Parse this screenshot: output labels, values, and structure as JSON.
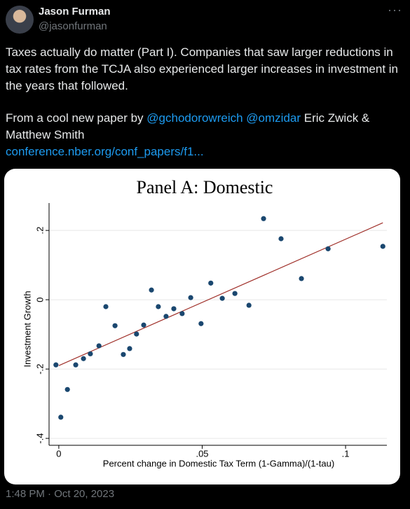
{
  "tweet": {
    "author": "Jason Furman",
    "handle": "@jasonfurman",
    "paragraph_1": "Taxes actually do matter (Part I). Companies that saw larger reductions in tax rates from the TCJA also experienced larger increases in investment in the years that followed.",
    "paragraph_2": [
      "From a cool new paper by",
      "@gchodorowreich",
      "@omzidar",
      "Eric Zwick & Matthew Smith"
    ],
    "link": "conference.nber.org/conf_papers/f1...",
    "timestamp": "1:48 PM · Oct 20, 2023"
  },
  "chart_data": {
    "type": "scatter",
    "title": "Panel A: Domestic",
    "x_label": "Percent change in Domestic Tax Term (1-Gamma)/(1-tau)",
    "y_label": "Investment Growth",
    "x": [
      -0.001,
      0.0007,
      0.003,
      0.0059,
      0.0086,
      0.011,
      0.014,
      0.0164,
      0.0196,
      0.0225,
      0.0247,
      0.0271,
      0.0296,
      0.0323,
      0.0347,
      0.0374,
      0.0401,
      0.043,
      0.046,
      0.0496,
      0.053,
      0.057,
      0.0614,
      0.0663,
      0.0714,
      0.0775,
      0.0846,
      0.0939,
      0.113
    ],
    "y": [
      -0.188,
      -0.339,
      -0.259,
      -0.188,
      -0.17,
      -0.156,
      -0.133,
      -0.02,
      -0.075,
      -0.158,
      -0.141,
      -0.099,
      -0.073,
      0.028,
      -0.02,
      -0.048,
      -0.026,
      -0.04,
      0.006,
      -0.069,
      0.048,
      0.004,
      0.018,
      -0.016,
      0.234,
      0.176,
      0.061,
      0.147,
      0.154
    ],
    "color": "#1a476f",
    "fit_line": {
      "x": [
        0,
        0.113
      ],
      "y": [
        -0.19,
        0.222
      ],
      "color": "#a0302a"
    },
    "xlim": [
      -0.0034,
      0.1144
    ],
    "xticks": [
      0,
      {
        "value": 0.05,
        "label": ".05"
      },
      {
        "value": 0.1,
        "label": ".1"
      }
    ],
    "ylim": [
      -0.42,
      0.279
    ],
    "yticks": [
      {
        "value": -0.4,
        "label": "-.4"
      },
      {
        "value": -0.2,
        "label": "-.2"
      },
      0,
      {
        "value": 0.2,
        "label": ".2"
      }
    ],
    "grid": true
  }
}
